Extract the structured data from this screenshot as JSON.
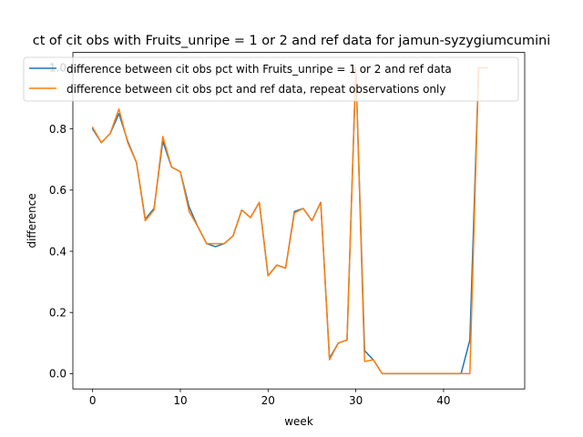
{
  "chart_data": {
    "type": "line",
    "title": "ct of cit obs with Fruits_unripe = 1 or 2 and ref data for jamun-syzygiumcumini",
    "xlabel": "week",
    "ylabel": "difference",
    "xlim": [
      -2.25,
      49.25
    ],
    "ylim": [
      -0.05,
      1.05
    ],
    "xticks": [
      0,
      10,
      20,
      30,
      40
    ],
    "yticks": [
      0.0,
      0.2,
      0.4,
      0.6,
      0.8,
      1.0
    ],
    "xtick_labels": [
      "0",
      "10",
      "20",
      "30",
      "40"
    ],
    "ytick_labels": [
      "0.0",
      "0.2",
      "0.4",
      "0.6",
      "0.8",
      "1.0"
    ],
    "legend_position": "upper-center",
    "grid": false,
    "series": [
      {
        "name": "difference between cit obs pct with Fruits_unripe = 1 or 2 and ref data",
        "color": "#1f77b4",
        "x": [
          0,
          1,
          2,
          3,
          4,
          5,
          6,
          7,
          8,
          9,
          10,
          11,
          12,
          13,
          14,
          15,
          16,
          17,
          18,
          19,
          20,
          21,
          22,
          23,
          24,
          25,
          26,
          27,
          28,
          29,
          30,
          31,
          32,
          33,
          34,
          35,
          36,
          37,
          38,
          39,
          40,
          41,
          42,
          43,
          44,
          45
        ],
        "y": [
          0.8,
          0.755,
          0.785,
          0.85,
          0.76,
          0.69,
          0.505,
          0.54,
          0.76,
          0.675,
          0.66,
          0.545,
          0.48,
          0.425,
          0.415,
          0.425,
          0.45,
          0.535,
          0.51,
          0.56,
          0.32,
          0.355,
          0.345,
          0.53,
          0.54,
          0.5,
          0.56,
          0.05,
          0.1,
          0.11,
          1.0,
          0.075,
          0.045,
          0.0,
          0.0,
          0.0,
          0.0,
          0.0,
          0.0,
          0.0,
          0.0,
          0.0,
          0.0,
          0.11,
          1.0,
          1.0
        ]
      },
      {
        "name": "difference between cit obs pct and ref data, repeat observations only",
        "color": "#ff7f0e",
        "x": [
          0,
          1,
          2,
          3,
          4,
          5,
          6,
          7,
          8,
          9,
          10,
          11,
          12,
          13,
          14,
          15,
          16,
          17,
          18,
          19,
          20,
          21,
          22,
          23,
          24,
          25,
          26,
          27,
          28,
          29,
          30,
          31,
          32,
          33,
          34,
          35,
          36,
          37,
          38,
          39,
          40,
          41,
          42,
          43,
          44,
          45
        ],
        "y": [
          0.805,
          0.755,
          0.785,
          0.865,
          0.755,
          0.69,
          0.5,
          0.535,
          0.775,
          0.675,
          0.66,
          0.53,
          0.48,
          0.425,
          0.425,
          0.425,
          0.45,
          0.535,
          0.51,
          0.56,
          0.32,
          0.355,
          0.345,
          0.525,
          0.54,
          0.5,
          0.56,
          0.045,
          0.1,
          0.11,
          1.0,
          0.04,
          0.045,
          0.0,
          0.0,
          0.0,
          0.0,
          0.0,
          0.0,
          0.0,
          0.0,
          0.0,
          0.0,
          0.0,
          1.0,
          1.0
        ]
      }
    ]
  }
}
